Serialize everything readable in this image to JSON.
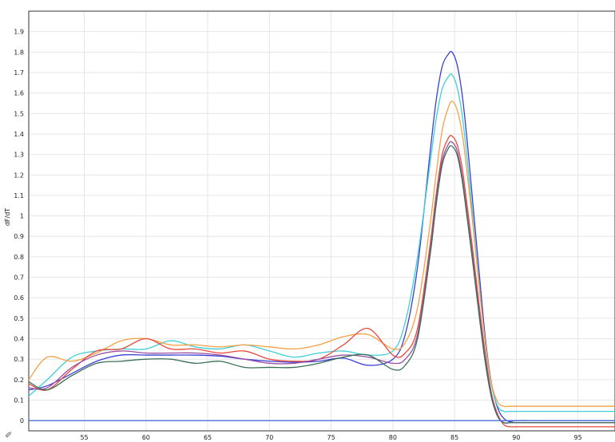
{
  "chart_data": {
    "type": "line",
    "title": "",
    "xlabel": "",
    "ylabel": "dF/dT",
    "xlim": [
      50.5,
      98
    ],
    "ylim": [
      -0.05,
      2.0
    ],
    "xticks": [
      55,
      60,
      65,
      70,
      75,
      80,
      85,
      90,
      95
    ],
    "yticks": [
      0,
      0.1,
      0.2,
      0.3,
      0.4,
      0.5,
      0.6,
      0.7,
      0.8,
      0.9,
      1,
      1.1,
      1.2,
      1.3,
      1.4,
      1.5,
      1.6,
      1.7,
      1.8,
      1.9
    ],
    "grid": true,
    "legend": "none",
    "series": [
      {
        "color": "#3a3fd6",
        "x": [
          50.5,
          52,
          54,
          56,
          58,
          60,
          62,
          64,
          66,
          68,
          70,
          72,
          74,
          76,
          78,
          80,
          81,
          82,
          83,
          83.5,
          84,
          84.5,
          84.8,
          85.2,
          85.6,
          86,
          86.5,
          87,
          87.5,
          88,
          88.5,
          89,
          89.5,
          90,
          92,
          95,
          98
        ],
        "y": [
          0.15,
          0.17,
          0.23,
          0.29,
          0.32,
          0.32,
          0.32,
          0.32,
          0.315,
          0.3,
          0.29,
          0.285,
          0.29,
          0.305,
          0.27,
          0.3,
          0.42,
          0.75,
          1.3,
          1.56,
          1.73,
          1.79,
          1.8,
          1.74,
          1.6,
          1.38,
          1.05,
          0.72,
          0.4,
          0.18,
          0.06,
          0.01,
          -0.005,
          0.0,
          0.0,
          0.0,
          0.0
        ]
      },
      {
        "color": "#3fcfd6",
        "x": [
          50.5,
          52,
          54,
          56,
          58,
          60,
          62,
          64,
          66,
          68,
          70,
          72,
          74,
          76,
          78,
          80,
          81,
          82,
          83,
          83.5,
          84,
          84.5,
          84.8,
          85.2,
          85.6,
          86,
          86.5,
          87,
          87.5,
          88,
          88.5,
          89,
          89.5,
          90,
          92,
          95,
          98
        ],
        "y": [
          0.12,
          0.2,
          0.31,
          0.34,
          0.35,
          0.35,
          0.39,
          0.36,
          0.35,
          0.37,
          0.34,
          0.31,
          0.33,
          0.34,
          0.32,
          0.34,
          0.48,
          0.8,
          1.25,
          1.47,
          1.62,
          1.68,
          1.69,
          1.63,
          1.5,
          1.29,
          0.98,
          0.66,
          0.37,
          0.17,
          0.07,
          0.045,
          0.045,
          0.045,
          0.045,
          0.045,
          0.045
        ]
      },
      {
        "color": "#f5a045",
        "x": [
          50.5,
          52,
          54,
          56,
          58,
          60,
          62,
          64,
          66,
          68,
          70,
          72,
          74,
          76,
          78,
          80,
          81,
          82,
          83,
          83.5,
          84,
          84.5,
          84.8,
          85.2,
          85.6,
          86,
          86.5,
          87,
          87.5,
          88,
          88.5,
          89,
          89.5,
          90,
          92,
          95,
          98
        ],
        "y": [
          0.2,
          0.31,
          0.29,
          0.33,
          0.39,
          0.4,
          0.37,
          0.37,
          0.36,
          0.37,
          0.36,
          0.35,
          0.37,
          0.41,
          0.42,
          0.35,
          0.38,
          0.55,
          0.95,
          1.2,
          1.42,
          1.53,
          1.56,
          1.52,
          1.41,
          1.22,
          0.95,
          0.65,
          0.38,
          0.18,
          0.09,
          0.07,
          0.07,
          0.07,
          0.07,
          0.07,
          0.07
        ]
      },
      {
        "color": "#e8493a",
        "x": [
          50.5,
          52,
          54,
          56,
          58,
          60,
          62,
          64,
          66,
          68,
          70,
          72,
          74,
          76,
          78,
          80,
          81,
          82,
          83,
          83.5,
          84,
          84.5,
          84.8,
          85.2,
          85.6,
          86,
          86.5,
          87,
          87.5,
          88,
          88.5,
          89,
          89.5,
          90,
          92,
          95,
          98
        ],
        "y": [
          0.18,
          0.15,
          0.25,
          0.34,
          0.35,
          0.4,
          0.35,
          0.35,
          0.33,
          0.34,
          0.3,
          0.29,
          0.3,
          0.37,
          0.45,
          0.32,
          0.33,
          0.45,
          0.85,
          1.1,
          1.3,
          1.38,
          1.39,
          1.35,
          1.24,
          1.06,
          0.82,
          0.56,
          0.32,
          0.13,
          0.03,
          -0.02,
          -0.03,
          -0.03,
          -0.03,
          -0.03,
          -0.03
        ]
      },
      {
        "color": "#9a4fa0",
        "x": [
          50.5,
          52,
          54,
          56,
          58,
          60,
          62,
          64,
          66,
          68,
          70,
          72,
          74,
          76,
          78,
          80,
          81,
          82,
          83,
          83.5,
          84,
          84.5,
          84.8,
          85.2,
          85.6,
          86,
          86.5,
          87,
          87.5,
          88,
          88.5,
          89,
          89.5,
          90,
          92,
          95,
          98
        ],
        "y": [
          0.16,
          0.16,
          0.26,
          0.32,
          0.34,
          0.33,
          0.33,
          0.33,
          0.32,
          0.3,
          0.28,
          0.28,
          0.3,
          0.32,
          0.31,
          0.28,
          0.3,
          0.42,
          0.82,
          1.08,
          1.27,
          1.35,
          1.36,
          1.32,
          1.2,
          1.02,
          0.78,
          0.53,
          0.3,
          0.12,
          0.02,
          -0.01,
          -0.01,
          -0.01,
          -0.01,
          -0.01,
          -0.01
        ]
      },
      {
        "color": "#3a6e55",
        "x": [
          50.5,
          52,
          54,
          56,
          58,
          60,
          62,
          64,
          66,
          68,
          70,
          72,
          74,
          76,
          78,
          80,
          81,
          82,
          83,
          83.5,
          84,
          84.5,
          84.8,
          85.2,
          85.6,
          86,
          86.5,
          87,
          87.5,
          88,
          88.5,
          89,
          89.5,
          90,
          92,
          95,
          98
        ],
        "y": [
          0.19,
          0.15,
          0.22,
          0.28,
          0.29,
          0.3,
          0.3,
          0.28,
          0.29,
          0.26,
          0.26,
          0.26,
          0.28,
          0.31,
          0.32,
          0.25,
          0.27,
          0.4,
          0.8,
          1.05,
          1.25,
          1.33,
          1.34,
          1.3,
          1.18,
          1.0,
          0.76,
          0.51,
          0.28,
          0.11,
          0.02,
          -0.01,
          -0.01,
          -0.01,
          -0.01,
          -0.01,
          -0.01
        ]
      },
      {
        "color": "#4a6fd8",
        "x": [
          50.5,
          98
        ],
        "y": [
          0.0,
          0.0
        ]
      }
    ]
  },
  "icons": {
    "corner": "pin-icon"
  }
}
